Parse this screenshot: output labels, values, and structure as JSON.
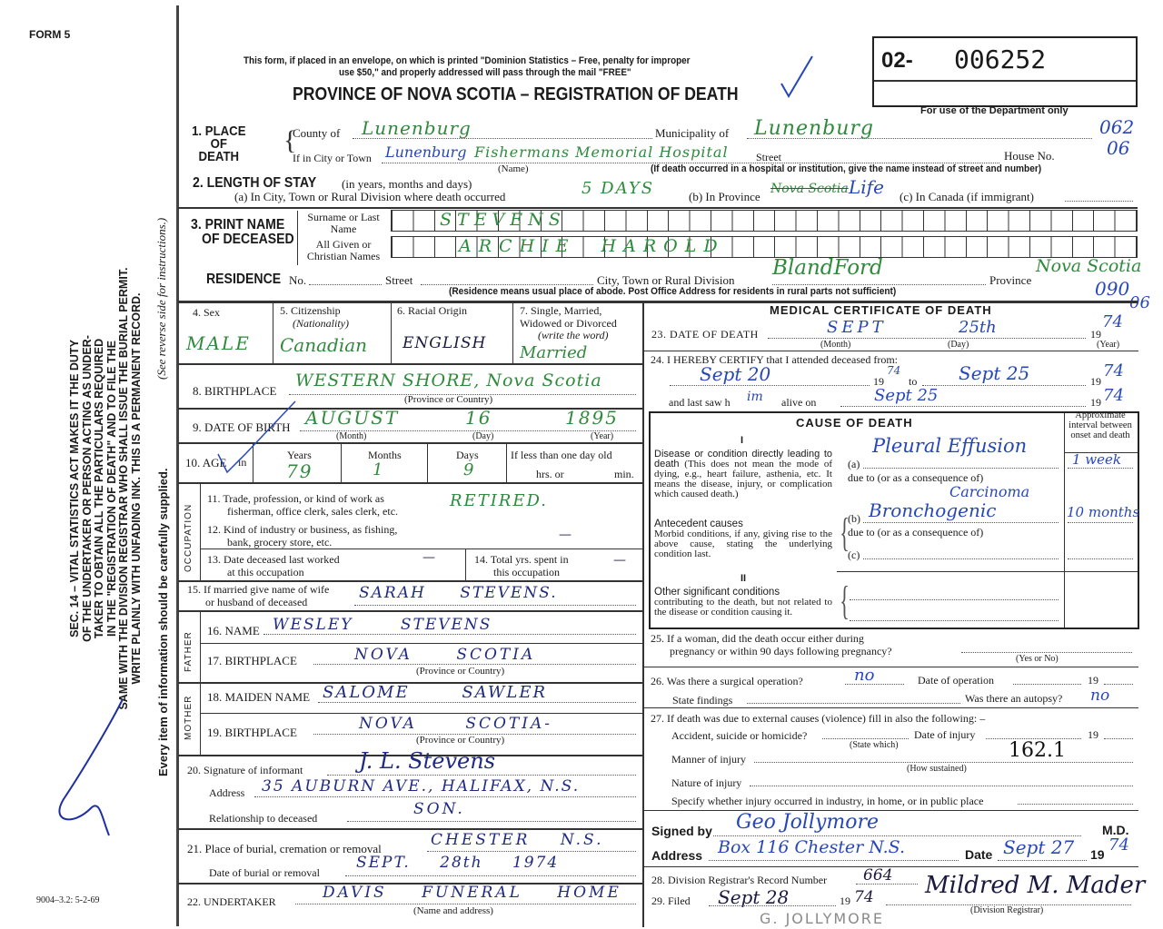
{
  "form_number": "FORM 5",
  "print_code": "9004–3.2: 5-2-69",
  "side_notice": {
    "lines": [
      "SEC. 14 – VITAL STATISTICS ACT MAKES IT THE DUTY",
      "OF THE UNDERTAKER OR PERSON ACTING AS UNDER-",
      "TAKER TO OBTAIN ALL THE PARTICULARS REQUIRED",
      "IN THE \"REGISTRATION OF DEATH\" AND TO FILE THE",
      "SAME WITH THE DIVISION REGISTRAR WHO SHALL ISSUE THE BURIAL PERMIT.",
      "WRITE PLAINLY WITH UNFADING INK. THIS IS A PERMANENT RECORD."
    ],
    "see_reverse": "(See reverse side for instructions.)",
    "every_item": "Every item of information should be carefully supplied."
  },
  "header": {
    "mail_notice_1": "This form, if placed in an envelope, on which is printed \"Dominion Statistics – Free, penalty for improper",
    "mail_notice_2": "use $50,\" and properly addressed will pass through the mail \"FREE\"",
    "title": "PROVINCE OF NOVA SCOTIA – REGISTRATION OF DEATH",
    "reg_prefix": "02-",
    "reg_number": "006252",
    "dept_use": "For use of the Department only"
  },
  "dept_codes": {
    "county": "062",
    "place": "06",
    "residence": "090",
    "date": "06"
  },
  "place_of_death": {
    "label": "1. PLACE OF DEATH",
    "county_label": "County of",
    "county": "Lunenburg",
    "municipality_label": "Municipality of",
    "municipality": "Lunenburg",
    "city_label": "If in City or Town",
    "city": "Lunenburg",
    "institution": "Fishermans Memorial Hospital",
    "street_label": "Street",
    "house_label": "House No.",
    "name_caption": "(Name)",
    "hospital_note": "(If death occurred in a hospital or institution, give the name instead of street and number)"
  },
  "length_of_stay": {
    "label": "2. LENGTH OF STAY",
    "unit_note": "(in years, months and days)",
    "a_label": "(a) In City, Town or Rural Division where death occurred",
    "a_value": "5 DAYS",
    "b_label": "(b) In Province",
    "b_value_struck": "Nova Scotia",
    "b_value": "Life",
    "c_label": "(c) In Canada (if immigrant)"
  },
  "deceased_name": {
    "label_1": "3. PRINT NAME",
    "label_2": "OF DECEASED",
    "surname_label": "Surname or Last Name",
    "surname": "STEVENS",
    "given_label": "All Given or Christian Names",
    "given": "ARCHIE HAROLD"
  },
  "residence": {
    "label": "RESIDENCE",
    "no_label": "No.",
    "street_label": "Street",
    "city_label": "City, Town or Rural Division",
    "city": "BlandFord",
    "province_label": "Province",
    "province": "Nova Scotia",
    "note": "(Residence means usual place of abode. Post Office Address for residents in rural parts not sufficient)"
  },
  "personal": {
    "sex_label": "4. Sex",
    "sex": "MALE",
    "citizenship_label": "5. Citizenship",
    "citizenship_sub": "(Nationality)",
    "citizenship": "Canadian",
    "racial_label": "6. Racial Origin",
    "racial": "ENGLISH",
    "marital_label_1": "7. Single, Married,",
    "marital_label_2": "Widowed or Divorced",
    "marital_sub": "(write the word)",
    "marital": "Married",
    "birthplace_label": "8. BIRTHPLACE",
    "birthplace": "WESTERN SHORE, Nova Scotia",
    "birthplace_caption": "(Province or Country)",
    "dob_label": "9. DATE OF BIRTH",
    "dob_month": "AUGUST",
    "dob_day": "16",
    "dob_year": "1895",
    "month_caption": "(Month)",
    "day_caption": "(Day)",
    "year_caption": "(Year)",
    "age_label": "10. AGE",
    "age_in": "in",
    "years_label": "Years",
    "months_label": "Months",
    "days_label": "Days",
    "age_years": "79",
    "age_months": "1",
    "age_days": "9",
    "less_than_day": "If less than one day old",
    "hrs_label": "hrs. or",
    "min_label": "min."
  },
  "occupation": {
    "side_label": "OCCUPATION",
    "trade_label_1": "11. Trade, profession, or kind of work as",
    "trade_label_2": "fisherman, office clerk, sales clerk, etc.",
    "trade": "RETIRED.",
    "industry_label_1": "12. Kind of industry or business, as fishing,",
    "industry_label_2": "bank, grocery store, etc.",
    "industry": "—",
    "last_worked_label_1": "13. Date deceased last worked",
    "last_worked_label_2": "at this occupation",
    "last_worked": "—",
    "total_years_label_1": "14. Total yrs. spent in",
    "total_years_label_2": "this occupation",
    "total_years": "—"
  },
  "spouse": {
    "label_1": "15. If married give name of wife",
    "label_2": "or husband of deceased",
    "name": "SARAH STEVENS."
  },
  "father": {
    "side_label": "FATHER",
    "name_label": "16. NAME",
    "name": "WESLEY STEVENS",
    "birthplace_label": "17. BIRTHPLACE",
    "birthplace": "NOVA SCOTIA",
    "birthplace_caption": "(Province or Country)"
  },
  "mother": {
    "side_label": "MOTHER",
    "maiden_label": "18. MAIDEN NAME",
    "maiden": "SALOME SAWLER",
    "birthplace_label": "19. BIRTHPLACE",
    "birthplace": "NOVA SCOTIA-",
    "birthplace_caption": "(Province or Country)"
  },
  "informant": {
    "signature_label": "20. Signature of informant",
    "signature": "J. L. Stevens",
    "address_label": "Address",
    "address": "35 AUBURN AVE., HALIFAX, N.S.",
    "relationship_label": "Relationship to deceased",
    "relationship": "SON."
  },
  "burial": {
    "place_label": "21. Place of burial, cremation or removal",
    "place": "CHESTER N.S.",
    "date_label": "Date of burial or removal",
    "date": "SEPT. 28th 1974"
  },
  "undertaker": {
    "label": "22. UNDERTAKER",
    "name": "DAVIS FUNERAL HOME",
    "caption": "(Name and address)"
  },
  "medical": {
    "title": "MEDICAL CERTIFICATE OF DEATH",
    "date_label": "23. DATE OF DEATH",
    "death_month": "SEPT",
    "death_day": "25th",
    "death_year": "74",
    "nineteen": "19",
    "month_caption": "(Month)",
    "day_caption": "(Day)",
    "year_caption": "(Year)",
    "certify_label": "24. I HEREBY CERTIFY that I attended deceased from:",
    "from_date": "Sept 20",
    "from_year": "74",
    "to_label": "to",
    "to_date": "Sept 25",
    "to_year": "74",
    "last_saw_label_1": "and last saw h",
    "last_saw_him": "im",
    "last_saw_label_2": "alive on",
    "last_saw_date": "Sept 25",
    "last_saw_year": "74"
  },
  "cause": {
    "title": "CAUSE OF DEATH",
    "interval_header": "Approximate interval between onset and death",
    "part1": "I",
    "direct_title": "Disease or condition directly leading to death",
    "direct_text": "(This does not mean the mode of dying, e.g., heart failure, asthenia, etc. It means the disease, injury, or complication which caused death.)",
    "antecedent_title": "Antecedent causes",
    "antecedent_text": "Morbid conditions, if any, giving rise to the above cause, stating the underlying condition last.",
    "a_label": "(a)",
    "a_value": "Pleural Effusion",
    "a_interval": "1 week",
    "due_to": "due to (or as a consequence of)",
    "b_label": "(b)",
    "b_value_1": "Carcinoma",
    "b_value_2": "Bronchogenic",
    "b_interval": "10 months",
    "c_label": "(c)",
    "part2": "II",
    "other_title": "Other significant conditions",
    "other_text": "contributing to the death, but not related to the disease or condition causing it."
  },
  "questions": {
    "q25_1": "25. If a woman, did the death occur either during",
    "q25_2": "pregnancy or within 90 days following pregnancy?",
    "yes_no": "(Yes or No)",
    "q26": "26. Was there a surgical operation?",
    "q26_value": "no",
    "op_date_label": "Date of operation",
    "nineteen": "19",
    "findings_label": "State findings",
    "autopsy_label": "Was there an autopsy?",
    "autopsy": "no",
    "q27": "27. If death was due to external causes (violence) fill in also the following: –",
    "accident_label": "Accident, suicide or homicide?",
    "state_which": "(State which)",
    "injury_date_label": "Date of injury",
    "manner_label": "Manner of injury",
    "manner_code": "162.1",
    "how_sustained": "(How sustained)",
    "nature_label": "Nature of injury",
    "specify_label": "Specify whether injury occurred in industry, in home, or in public place"
  },
  "signature": {
    "signed_label": "Signed by",
    "signed": "Geo Jollymore",
    "md": "M.D.",
    "address_label": "Address",
    "address": "Box 116 Chester N.S.",
    "date_label": "Date",
    "date": "Sept 27",
    "nineteen": "19",
    "year": "74"
  },
  "registrar": {
    "record_label": "28. Division Registrar's Record Number",
    "record": "664",
    "filed_label": "29. Filed",
    "filed": "Sept 28",
    "nineteen": "19",
    "filed_year": "74",
    "registrar_signature": "Mildred M. Mader",
    "registrar_caption": "(Division Registrar)",
    "physician_print": "G. JOLLYMORE"
  }
}
